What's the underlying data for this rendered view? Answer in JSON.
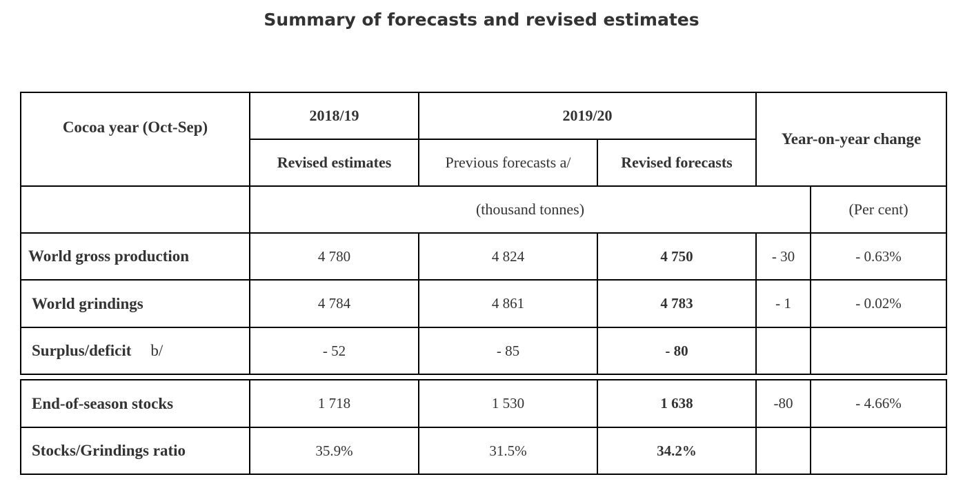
{
  "title": "Summary of forecasts and revised estimates",
  "header": {
    "cocoa_year": "Cocoa year (Oct-Sep)",
    "year_2018": "2018/19",
    "year_2019": "2019/20",
    "yoy": "Year-on-year change",
    "revised_estimates": "Revised estimates",
    "previous_forecasts": "Previous forecasts a/",
    "revised_forecasts": "Revised forecasts",
    "unit_tonnes": "(thousand tonnes)",
    "unit_percent": "(Per cent)"
  },
  "rows": [
    {
      "label": "World gross production",
      "note": "",
      "est_2018": "4 780",
      "prev_2019": "4 824",
      "rev_2019": "4 750",
      "change": "- 30",
      "change_pct": "- 0.63%"
    },
    {
      "label": "World grindings",
      "note": "",
      "est_2018": "4 784",
      "prev_2019": "4 861",
      "rev_2019": "4 783",
      "change": "- 1",
      "change_pct": "- 0.02%"
    },
    {
      "label": "Surplus/deficit",
      "note": "b/",
      "est_2018": "- 52",
      "prev_2019": "- 85",
      "rev_2019": "- 80",
      "change": "",
      "change_pct": ""
    },
    {
      "label": "End-of-season stocks",
      "note": "",
      "est_2018": "1 718",
      "prev_2019": "1 530",
      "rev_2019": "1 638",
      "change": "-80",
      "change_pct": "- 4.66%"
    },
    {
      "label": "Stocks/Grindings ratio",
      "note": "",
      "est_2018": "35.9%",
      "prev_2019": "31.5%",
      "rev_2019": "34.2%",
      "change": "",
      "change_pct": ""
    }
  ]
}
